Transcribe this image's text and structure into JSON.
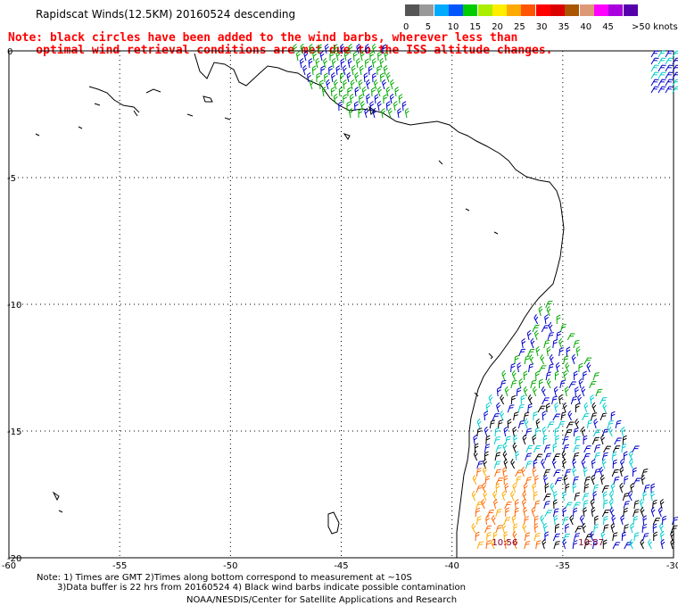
{
  "title": "Rapidscat Winds(12.5KM) 20160524 descending",
  "note": {
    "line1": "Note: black circles have been added to the wind barbs, wherever less than",
    "line2": "    optimal wind retrieval conditions are met due to the ISS altitude changes."
  },
  "legend": {
    "unit": ">50 knots",
    "colors": [
      "#555555",
      "#999999",
      "#00aaff",
      "#0055ff",
      "#00cc00",
      "#aaee00",
      "#ffee00",
      "#ffaa00",
      "#ff5500",
      "#ff0000",
      "#dd0000",
      "#aa5500",
      "#dd9977",
      "#ff00ff",
      "#aa00dd",
      "#5500aa"
    ],
    "labels": [
      "0",
      "5",
      "10",
      "15",
      "20",
      "25",
      "30",
      "35",
      "40",
      "45"
    ]
  },
  "axes": {
    "x_ticks": [
      "-60",
      "-55",
      "-50",
      "-45",
      "-40",
      "-35",
      "-30"
    ],
    "y_ticks": [
      "0",
      "-5",
      "-10",
      "-15",
      "-20"
    ]
  },
  "wind_field": {
    "barb_colors": {
      "light": "#00cccc",
      "mid": "#0000cc",
      "strong": "#00aa00",
      "high": "#ff6600",
      "higher": "#ffaa00",
      "flagged": "#000000"
    }
  },
  "annotations": [
    {
      "text": "10:56",
      "lon": -38.2,
      "lat": -19.5
    },
    {
      "text": "10:57",
      "lon": -34.3,
      "lat": -19.5
    }
  ],
  "footer": {
    "line1": "Note: 1) Times are GMT 2)Times along bottom correspond to measurement at ~10S",
    "line2": "3)Data buffer is 22 hrs from 20160524 4) Black wind barbs indicate possible contamination",
    "line3": "NOAA/NESDIS/Center for Satellite Applications and Research"
  }
}
